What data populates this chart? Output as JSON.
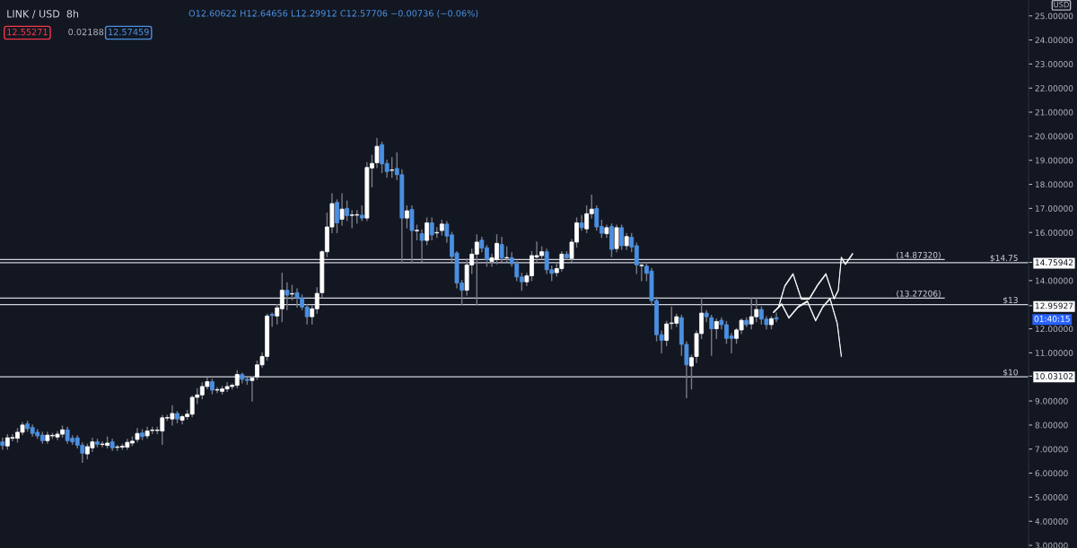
{
  "chart_data": {
    "type": "candlestick",
    "title": "LINK / USD  8h",
    "subtitle": "O12.60622 H12.64656 L12.29912 C12.57706 −0.00736 (−0.06%)",
    "annotations": [
      "12.55271",
      "0.02188",
      "12.57459",
      "USD",
      "01:40:15"
    ],
    "categories": [
      null,
      null,
      null,
      null,
      null,
      null,
      null,
      null,
      null,
      null,
      null,
      null,
      null,
      null,
      null,
      null,
      null,
      null,
      null,
      null,
      null,
      null,
      null,
      null,
      null,
      null,
      null,
      null,
      null,
      null,
      null,
      null,
      null,
      null,
      null,
      null,
      null,
      null,
      null,
      null,
      null,
      null,
      null,
      null,
      null,
      null,
      null,
      null,
      null,
      null,
      null,
      null,
      null,
      null,
      null,
      null,
      null,
      null,
      null,
      null,
      null,
      null,
      null,
      null,
      null,
      null,
      null,
      null,
      null,
      null,
      null,
      null,
      null,
      null,
      null,
      null,
      null,
      null,
      null,
      null,
      null,
      null,
      null,
      null,
      null,
      null,
      null,
      null,
      null,
      null,
      null,
      null,
      null,
      null,
      null,
      null,
      null,
      null,
      null,
      null,
      null,
      null,
      null,
      null,
      null,
      null,
      null,
      null,
      null,
      null,
      null,
      null,
      null,
      null,
      null,
      null,
      null,
      null,
      null,
      null,
      null,
      null,
      null,
      null,
      null,
      null,
      null,
      null,
      null,
      null,
      null,
      null,
      null,
      null,
      null,
      null,
      null,
      null,
      null,
      null,
      null,
      null,
      null,
      null,
      null,
      null,
      null,
      null,
      null,
      null,
      null,
      null,
      null,
      null,
      null,
      null,
      null,
      null,
      null,
      null,
      null,
      null,
      null,
      null,
      null,
      null,
      null,
      null,
      null,
      null,
      null,
      null,
      null,
      null,
      null,
      null,
      null,
      null,
      null,
      null,
      null,
      null,
      null,
      null,
      null,
      null,
      null,
      null,
      null,
      null,
      null,
      null,
      null,
      null,
      null,
      null,
      null,
      null,
      null,
      null,
      null,
      null,
      null,
      null,
      null,
      null
    ],
    "ohlc": [
      [
        7.3,
        7.45,
        7.0,
        7.15
      ],
      [
        7.13,
        7.6,
        7.0,
        7.47
      ],
      [
        7.45,
        7.6,
        7.35,
        7.48
      ],
      [
        7.45,
        7.85,
        7.3,
        7.7
      ],
      [
        7.7,
        8.1,
        7.6,
        8.0
      ],
      [
        8.05,
        8.15,
        7.75,
        7.85
      ],
      [
        7.9,
        8.0,
        7.55,
        7.65
      ],
      [
        7.7,
        7.8,
        7.45,
        7.55
      ],
      [
        7.58,
        7.7,
        7.25,
        7.35
      ],
      [
        7.35,
        7.7,
        7.25,
        7.58
      ],
      [
        7.55,
        7.65,
        7.45,
        7.57
      ],
      [
        7.5,
        7.72,
        7.4,
        7.62
      ],
      [
        7.62,
        7.95,
        7.5,
        7.8
      ],
      [
        7.8,
        7.9,
        7.25,
        7.35
      ],
      [
        7.45,
        7.55,
        7.2,
        7.3
      ],
      [
        7.47,
        7.55,
        7.05,
        7.16
      ],
      [
        7.16,
        7.25,
        6.46,
        6.83
      ],
      [
        6.8,
        7.2,
        6.6,
        7.1
      ],
      [
        7.05,
        7.45,
        6.9,
        7.3
      ],
      [
        7.3,
        7.4,
        7.1,
        7.2
      ],
      [
        7.19,
        7.3,
        7.1,
        7.21
      ],
      [
        7.15,
        7.5,
        7.05,
        7.25
      ],
      [
        7.3,
        7.4,
        6.95,
        7.05
      ],
      [
        7.07,
        7.15,
        6.95,
        7.09
      ],
      [
        7.08,
        7.2,
        7.0,
        7.12
      ],
      [
        7.08,
        7.4,
        7.0,
        7.28
      ],
      [
        7.25,
        7.5,
        7.15,
        7.33
      ],
      [
        7.4,
        7.85,
        7.3,
        7.65
      ],
      [
        7.67,
        7.8,
        7.4,
        7.52
      ],
      [
        7.55,
        7.9,
        7.45,
        7.75
      ],
      [
        7.77,
        7.9,
        7.65,
        7.79
      ],
      [
        7.77,
        7.9,
        7.65,
        7.79
      ],
      [
        7.75,
        8.4,
        7.2,
        8.3
      ],
      [
        8.29,
        8.4,
        8.2,
        8.31
      ],
      [
        8.25,
        8.8,
        8.0,
        8.48
      ],
      [
        8.48,
        8.55,
        8.1,
        8.25
      ],
      [
        8.2,
        8.4,
        8.05,
        8.35
      ],
      [
        8.35,
        8.6,
        8.25,
        8.45
      ],
      [
        8.45,
        9.2,
        8.35,
        9.15
      ],
      [
        9.15,
        9.5,
        8.9,
        9.25
      ],
      [
        9.25,
        9.75,
        9.1,
        9.6
      ],
      [
        9.6,
        9.95,
        9.5,
        9.8
      ],
      [
        9.8,
        9.9,
        9.3,
        9.45
      ],
      [
        9.45,
        9.55,
        9.35,
        9.47
      ],
      [
        9.4,
        9.6,
        9.3,
        9.5
      ],
      [
        9.5,
        9.75,
        9.4,
        9.6
      ],
      [
        9.6,
        9.7,
        9.5,
        9.65
      ],
      [
        9.65,
        10.25,
        9.55,
        10.1
      ],
      [
        10.1,
        10.15,
        9.75,
        9.9
      ],
      [
        9.9,
        9.95,
        9.7,
        9.85
      ],
      [
        9.85,
        10.0,
        9.0,
        9.95
      ],
      [
        10.0,
        10.65,
        9.9,
        10.5
      ],
      [
        10.5,
        11.0,
        10.4,
        10.85
      ],
      [
        10.85,
        12.6,
        10.7,
        12.53
      ],
      [
        12.6,
        12.65,
        12.1,
        12.55
      ],
      [
        12.53,
        13.0,
        12.2,
        12.87
      ],
      [
        12.83,
        14.3,
        12.3,
        13.6
      ],
      [
        13.6,
        13.9,
        12.8,
        13.4
      ],
      [
        13.44,
        13.8,
        13.2,
        13.46
      ],
      [
        13.5,
        13.65,
        12.9,
        13.28
      ],
      [
        13.28,
        13.4,
        12.8,
        12.9
      ],
      [
        12.9,
        13.0,
        12.2,
        12.5
      ],
      [
        12.5,
        12.95,
        12.2,
        12.83
      ],
      [
        12.83,
        13.7,
        12.65,
        13.47
      ],
      [
        13.5,
        15.25,
        13.3,
        15.2
      ],
      [
        15.2,
        16.8,
        15.0,
        16.23
      ],
      [
        16.23,
        17.6,
        16.0,
        17.2
      ],
      [
        17.25,
        17.35,
        16.0,
        16.4
      ],
      [
        16.55,
        17.6,
        16.3,
        16.97
      ],
      [
        17.0,
        17.3,
        16.5,
        16.7
      ],
      [
        16.71,
        16.9,
        16.2,
        16.73
      ],
      [
        16.72,
        16.9,
        16.4,
        16.74
      ],
      [
        16.72,
        17.1,
        16.5,
        16.6
      ],
      [
        16.6,
        18.9,
        16.5,
        18.7
      ],
      [
        18.68,
        19.2,
        17.9,
        18.87
      ],
      [
        18.9,
        19.9,
        18.7,
        19.58
      ],
      [
        19.65,
        19.75,
        18.5,
        18.85
      ],
      [
        18.87,
        19.0,
        18.3,
        18.53
      ],
      [
        18.58,
        19.1,
        18.3,
        18.6
      ],
      [
        18.66,
        19.3,
        18.2,
        18.4
      ],
      [
        18.4,
        18.6,
        14.75,
        16.6
      ],
      [
        16.6,
        17.1,
        16.2,
        16.9
      ],
      [
        16.96,
        17.1,
        14.75,
        16.08
      ],
      [
        16.07,
        16.3,
        15.7,
        16.09
      ],
      [
        15.95,
        16.1,
        14.8,
        15.67
      ],
      [
        15.67,
        16.6,
        15.5,
        16.4
      ],
      [
        16.4,
        16.6,
        15.7,
        15.9
      ],
      [
        15.98,
        16.2,
        15.8,
        16.0
      ],
      [
        16.08,
        16.5,
        15.9,
        16.35
      ],
      [
        16.35,
        16.45,
        15.6,
        15.85
      ],
      [
        15.9,
        16.0,
        14.8,
        15.0
      ],
      [
        15.15,
        15.2,
        13.7,
        13.9
      ],
      [
        13.9,
        14.0,
        13.0,
        13.6
      ],
      [
        13.6,
        14.9,
        13.4,
        14.65
      ],
      [
        14.65,
        15.3,
        14.3,
        15.1
      ],
      [
        15.1,
        15.9,
        13.0,
        15.6
      ],
      [
        15.68,
        15.8,
        15.2,
        15.35
      ],
      [
        15.37,
        15.45,
        14.6,
        14.88
      ],
      [
        14.8,
        15.1,
        14.6,
        14.95
      ],
      [
        14.88,
        15.9,
        14.7,
        15.55
      ],
      [
        15.5,
        15.8,
        14.8,
        14.95
      ],
      [
        14.94,
        15.4,
        14.8,
        14.96
      ],
      [
        14.95,
        15.15,
        14.6,
        14.7
      ],
      [
        14.7,
        14.8,
        14.0,
        14.15
      ],
      [
        14.15,
        14.3,
        13.6,
        13.95
      ],
      [
        13.95,
        14.3,
        13.8,
        14.2
      ],
      [
        14.2,
        15.2,
        14.0,
        15.04
      ],
      [
        14.98,
        15.6,
        14.8,
        15.04
      ],
      [
        15.04,
        15.4,
        14.9,
        15.2
      ],
      [
        15.2,
        15.3,
        14.3,
        14.45
      ],
      [
        14.45,
        14.6,
        14.0,
        14.3
      ],
      [
        14.33,
        14.7,
        14.2,
        14.5
      ],
      [
        14.5,
        15.2,
        14.4,
        15.1
      ],
      [
        15.1,
        15.2,
        14.9,
        14.95
      ],
      [
        14.92,
        15.7,
        14.8,
        15.6
      ],
      [
        15.6,
        16.6,
        15.4,
        16.4
      ],
      [
        16.4,
        16.7,
        16.1,
        16.2
      ],
      [
        16.15,
        17.1,
        16.0,
        16.78
      ],
      [
        16.78,
        17.55,
        16.6,
        16.97
      ],
      [
        17.0,
        17.1,
        16.1,
        16.23
      ],
      [
        16.25,
        16.5,
        15.8,
        15.97
      ],
      [
        15.95,
        16.3,
        15.8,
        16.2
      ],
      [
        16.25,
        16.35,
        15.0,
        15.3
      ],
      [
        15.33,
        16.3,
        15.2,
        16.2
      ],
      [
        16.2,
        16.3,
        15.3,
        15.45
      ],
      [
        15.45,
        15.95,
        15.3,
        15.83
      ],
      [
        15.8,
        15.95,
        15.2,
        15.4
      ],
      [
        15.45,
        15.55,
        14.3,
        14.65
      ],
      [
        14.62,
        14.75,
        14.0,
        14.64
      ],
      [
        14.6,
        14.75,
        14.0,
        14.3
      ],
      [
        14.4,
        14.5,
        13.0,
        13.17
      ],
      [
        13.17,
        13.3,
        11.5,
        11.75
      ],
      [
        11.75,
        11.9,
        11.0,
        11.52
      ],
      [
        11.52,
        12.3,
        11.3,
        12.2
      ],
      [
        12.22,
        12.9,
        12.0,
        12.24
      ],
      [
        12.23,
        12.6,
        12.1,
        12.5
      ],
      [
        12.46,
        12.55,
        10.9,
        11.35
      ],
      [
        11.35,
        11.45,
        9.14,
        10.5
      ],
      [
        10.45,
        10.9,
        9.5,
        10.8
      ],
      [
        10.85,
        11.9,
        10.6,
        11.8
      ],
      [
        11.8,
        13.27,
        11.6,
        12.65
      ],
      [
        12.65,
        12.75,
        12.3,
        12.5
      ],
      [
        12.46,
        12.55,
        10.9,
        12.0
      ],
      [
        12.0,
        12.4,
        11.6,
        12.3
      ],
      [
        12.35,
        12.45,
        12.0,
        12.17
      ],
      [
        12.17,
        12.3,
        11.4,
        11.6
      ],
      [
        11.7,
        11.8,
        11.0,
        11.6
      ],
      [
        11.6,
        12.0,
        11.4,
        11.95
      ],
      [
        11.95,
        12.4,
        11.8,
        12.35
      ],
      [
        12.35,
        12.45,
        12.1,
        12.17
      ],
      [
        12.2,
        13.27,
        12.0,
        12.5
      ],
      [
        12.5,
        13.27,
        12.3,
        12.8
      ],
      [
        12.8,
        12.9,
        12.2,
        12.4
      ],
      [
        12.4,
        12.5,
        12.0,
        12.17
      ],
      [
        12.17,
        12.5,
        12.0,
        12.42
      ],
      [
        12.46,
        12.65,
        12.3,
        12.4
      ],
      null,
      null,
      null,
      null,
      null,
      null,
      null,
      null,
      null,
      null,
      null,
      null,
      null,
      null,
      null,
      null,
      null,
      null,
      null,
      null,
      null,
      null,
      null,
      null,
      null,
      null,
      null,
      null,
      null,
      null,
      null,
      null,
      null,
      null,
      null,
      null,
      null,
      null,
      null,
      null,
      null,
      null,
      null,
      null,
      null,
      null,
      null,
      null,
      null,
      null
    ],
    "colors": [
      "#4a90e2",
      "#ffffff",
      "#ffffff",
      "#ffffff",
      "#ffffff",
      "#4a90e2",
      "#4a90e2",
      "#4a90e2",
      "#4a90e2",
      "#ffffff",
      "#ffffff",
      "#ffffff",
      "#ffffff",
      "#4a90e2",
      "#4a90e2",
      "#4a90e2",
      "#4a90e2",
      "#ffffff",
      "#ffffff",
      "#4a90e2",
      "#ffffff",
      "#ffffff",
      "#4a90e2",
      "#ffffff",
      "#ffffff",
      "#ffffff",
      "#ffffff",
      "#ffffff",
      "#4a90e2",
      "#ffffff",
      "#ffffff",
      "#ffffff",
      "#ffffff",
      "#ffffff",
      "#ffffff",
      "#4a90e2",
      "#ffffff",
      "#ffffff",
      "#ffffff",
      "#ffffff",
      "#ffffff",
      "#ffffff",
      "#4a90e2",
      "#ffffff",
      "#ffffff",
      "#ffffff",
      "#ffffff",
      "#ffffff",
      "#4a90e2",
      "#4a90e2",
      "#ffffff",
      "#ffffff",
      "#ffffff",
      "#ffffff",
      "#4a90e2",
      "#ffffff",
      "#ffffff",
      "#4a90e2",
      "#ffffff",
      "#4a90e2",
      "#4a90e2",
      "#4a90e2",
      "#ffffff",
      "#ffffff",
      "#ffffff",
      "#ffffff",
      "#ffffff",
      "#4a90e2",
      "#ffffff",
      "#4a90e2",
      "#ffffff",
      "#ffffff",
      "#4a90e2",
      "#ffffff",
      "#ffffff",
      "#ffffff",
      "#4a90e2",
      "#4a90e2",
      "#ffffff",
      "#4a90e2",
      "#4a90e2",
      "#ffffff",
      "#4a90e2",
      "#ffffff",
      "#4a90e2",
      "#ffffff",
      "#4a90e2",
      "#ffffff",
      "#ffffff",
      "#4a90e2",
      "#4a90e2",
      "#4a90e2",
      "#4a90e2",
      "#ffffff",
      "#ffffff",
      "#ffffff",
      "#4a90e2",
      "#4a90e2",
      "#ffffff",
      "#ffffff",
      "#4a90e2",
      "#ffffff",
      "#4a90e2",
      "#4a90e2",
      "#4a90e2",
      "#ffffff",
      "#ffffff",
      "#ffffff",
      "#ffffff",
      "#4a90e2",
      "#4a90e2",
      "#ffffff",
      "#ffffff",
      "#4a90e2",
      "#ffffff",
      "#ffffff",
      "#4a90e2",
      "#ffffff",
      "#ffffff",
      "#4a90e2",
      "#4a90e2",
      "#ffffff",
      "#4a90e2",
      "#ffffff",
      "#4a90e2",
      "#ffffff",
      "#4a90e2",
      "#4a90e2",
      "#ffffff",
      "#4a90e2",
      "#4a90e2",
      "#4a90e2",
      "#4a90e2",
      "#ffffff",
      "#ffffff",
      "#ffffff",
      "#4a90e2",
      "#4a90e2",
      "#ffffff",
      "#ffffff",
      "#ffffff",
      "#4a90e2",
      "#4a90e2",
      "#ffffff",
      "#4a90e2",
      "#4a90e2",
      "#4a90e2",
      "#ffffff",
      "#ffffff",
      "#4a90e2",
      "#ffffff",
      "#ffffff",
      "#4a90e2",
      "#4a90e2",
      "#ffffff",
      "#4a90e2",
      null,
      null,
      null,
      null,
      null,
      null,
      null,
      null,
      null,
      null,
      null,
      null,
      null,
      null,
      null,
      null,
      null,
      null,
      null,
      null,
      null,
      null,
      null,
      null,
      null,
      null,
      null,
      null,
      null,
      null,
      null,
      null,
      null,
      null,
      null,
      null,
      null,
      null,
      null,
      null,
      null,
      null,
      null,
      null,
      null,
      null,
      null,
      null,
      null,
      null
    ],
    "ylim": [
      2.89,
      25.66
    ],
    "yticks": [
      {
        "value": 3,
        "label": "3.00000"
      },
      {
        "value": 4,
        "label": "4.00000"
      },
      {
        "value": 5,
        "label": "5.00000"
      },
      {
        "value": 6,
        "label": "6.00000"
      },
      {
        "value": 7,
        "label": "7.00000"
      },
      {
        "value": 8,
        "label": "8.00000"
      },
      {
        "value": 9,
        "label": "9.00000"
      },
      {
        "value": 10.03102,
        "label": "10.03102"
      },
      {
        "value": 11,
        "label": "11.00000"
      },
      {
        "value": 12,
        "label": "12.00000"
      },
      {
        "value": 12.95927,
        "label": "12.95927"
      },
      {
        "value": 14,
        "label": "14.00000"
      },
      {
        "value": 14.75942,
        "label": "14.75942"
      },
      {
        "value": 16,
        "label": "16.00000"
      },
      {
        "value": 17,
        "label": "17.00000"
      },
      {
        "value": 18,
        "label": "18.00000"
      },
      {
        "value": 19,
        "label": "19.00000"
      },
      {
        "value": 20,
        "label": "20.00000"
      },
      {
        "value": 21,
        "label": "21.00000"
      },
      {
        "value": 22,
        "label": "22.00000"
      },
      {
        "value": 23,
        "label": "23.00000"
      },
      {
        "value": 24,
        "label": "24.00000"
      },
      {
        "value": 25,
        "label": "25.00000"
      }
    ],
    "ref_lines": [
      {
        "axis": "y",
        "value": 14.75,
        "label": "$14.75",
        "color": "#d1d4dc"
      },
      {
        "axis": "y",
        "value": 14.8732,
        "label": "(14.87320)",
        "color": "#d1d4dc"
      },
      {
        "axis": "y",
        "value": 13,
        "label": "$13",
        "color": "#d1d4dc"
      },
      {
        "axis": "y",
        "value": 13.27206,
        "label": "(13.27206)",
        "color": "#d1d4dc"
      },
      {
        "axis": "y",
        "value": 10,
        "label": "$10",
        "color": "#d1d4dc"
      }
    ],
    "tick_labels": "y"
  }
}
